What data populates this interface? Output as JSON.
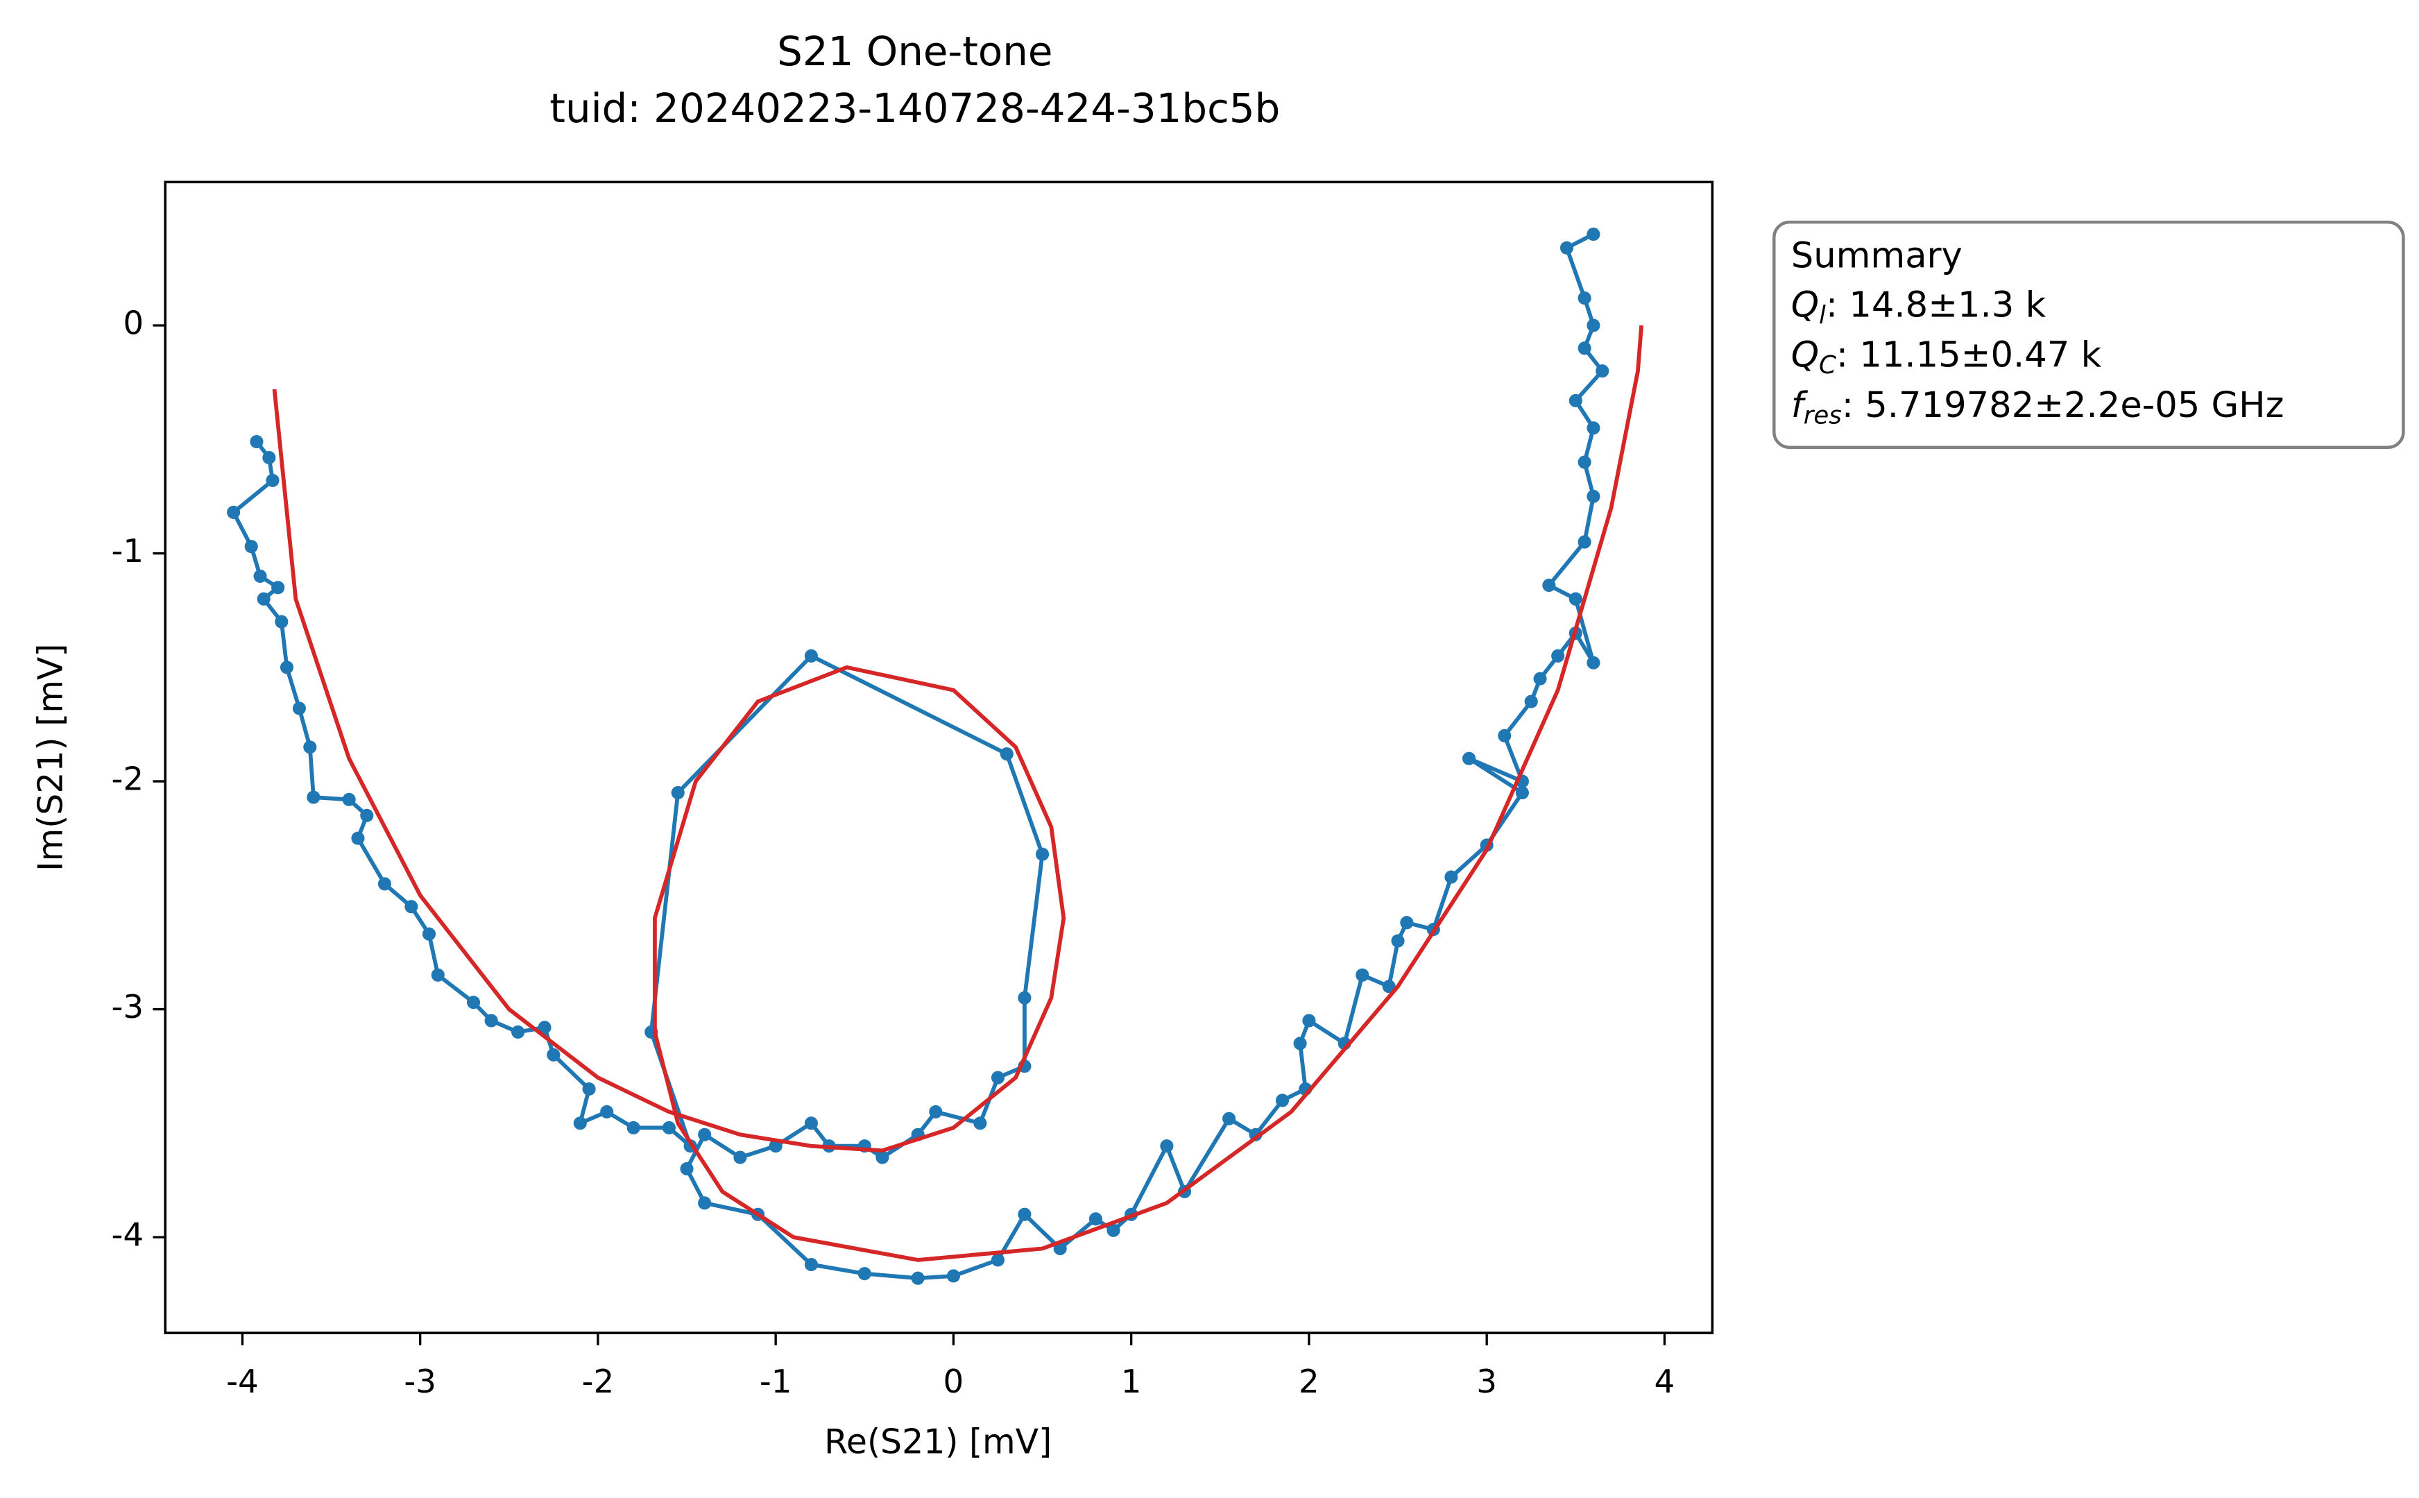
{
  "chart_data": {
    "type": "line",
    "title": "S21 One-tone",
    "subtitle": "tuid: 20240223-140728-424-31bc5b",
    "xlabel": "Re(S21) [mV]",
    "ylabel": "Im(S21) [mV]",
    "xlim": [
      -4.434,
      4.269
    ],
    "ylim": [
      -4.42,
      0.629
    ],
    "xticks": [
      -4,
      -3,
      -2,
      -1,
      0,
      1,
      2,
      3,
      4
    ],
    "yticks": [
      0,
      -1,
      -2,
      -3,
      -4
    ],
    "series": [
      {
        "color": "#1f77b4",
        "markers": true,
        "x": [
          -3.92,
          -3.85,
          -3.83,
          -4.05,
          -3.95,
          -3.9,
          -3.8,
          -3.88,
          -3.78,
          -3.75,
          -3.68,
          -3.62,
          -3.6,
          -3.4,
          -3.3,
          -3.35,
          -3.2,
          -3.05,
          -2.95,
          -2.9,
          -2.7,
          -2.6,
          -2.45,
          -2.3,
          -2.25,
          -2.05,
          -2.1,
          -1.95,
          -1.8,
          -1.6,
          -1.48,
          -1.7,
          -1.55,
          -0.8,
          0.3,
          0.5,
          0.4,
          0.4,
          0.25,
          0.15,
          -0.1,
          -0.2,
          -0.4,
          -0.5,
          -0.7,
          -0.8,
          -1.0,
          -1.2,
          -1.4,
          -1.5,
          -1.4,
          -1.1,
          -0.8,
          -0.5,
          -0.2,
          0.0,
          0.25,
          0.4,
          0.6,
          0.8,
          0.9,
          1.0,
          1.2,
          1.3,
          1.55,
          1.7,
          1.85,
          1.98,
          1.95,
          2.0,
          2.2,
          2.3,
          2.45,
          2.5,
          2.55,
          2.7,
          2.8,
          3.0,
          3.2,
          2.9,
          3.2,
          3.1,
          3.25,
          3.3,
          3.4,
          3.5,
          3.6,
          3.5,
          3.35,
          3.55,
          3.6,
          3.55,
          3.6,
          3.5,
          3.65,
          3.55,
          3.6,
          3.55,
          3.45,
          3.6
        ],
        "y": [
          -0.51,
          -0.58,
          -0.68,
          -0.82,
          -0.97,
          -1.1,
          -1.15,
          -1.2,
          -1.3,
          -1.5,
          -1.68,
          -1.85,
          -2.07,
          -2.08,
          -2.15,
          -2.25,
          -2.45,
          -2.55,
          -2.67,
          -2.85,
          -2.97,
          -3.05,
          -3.1,
          -3.08,
          -3.2,
          -3.35,
          -3.5,
          -3.45,
          -3.52,
          -3.52,
          -3.6,
          -3.1,
          -2.05,
          -1.45,
          -1.88,
          -2.32,
          -2.95,
          -3.25,
          -3.3,
          -3.5,
          -3.45,
          -3.55,
          -3.65,
          -3.6,
          -3.6,
          -3.5,
          -3.6,
          -3.65,
          -3.55,
          -3.7,
          -3.85,
          -3.9,
          -4.12,
          -4.16,
          -4.18,
          -4.17,
          -4.1,
          -3.9,
          -4.05,
          -3.92,
          -3.97,
          -3.9,
          -3.6,
          -3.8,
          -3.48,
          -3.55,
          -3.4,
          -3.35,
          -3.15,
          -3.05,
          -3.15,
          -2.85,
          -2.9,
          -2.7,
          -2.62,
          -2.65,
          -2.42,
          -2.28,
          -2.05,
          -1.9,
          -2.0,
          -1.8,
          -1.65,
          -1.55,
          -1.45,
          -1.35,
          -1.48,
          -1.2,
          -1.14,
          -0.95,
          -0.75,
          -0.6,
          -0.45,
          -0.33,
          -0.2,
          -0.1,
          0.0,
          0.12,
          0.34,
          0.4
        ]
      },
      {
        "color": "#d62728",
        "markers": false,
        "x": [
          -3.82,
          -3.7,
          -3.4,
          -3.0,
          -2.5,
          -2.0,
          -1.6,
          -1.2,
          -0.8,
          -0.4,
          0.0,
          0.35,
          0.55,
          0.62,
          0.55,
          0.35,
          0.0,
          -0.6,
          -1.1,
          -1.45,
          -1.68,
          -1.68,
          -1.55,
          -1.3,
          -0.9,
          -0.2,
          0.5,
          1.2,
          1.9,
          2.5,
          3.0,
          3.4,
          3.7,
          3.85,
          3.87
        ],
        "y": [
          -0.28,
          -1.2,
          -1.9,
          -2.5,
          -3.0,
          -3.3,
          -3.45,
          -3.55,
          -3.6,
          -3.62,
          -3.52,
          -3.3,
          -2.95,
          -2.6,
          -2.2,
          -1.85,
          -1.6,
          -1.5,
          -1.65,
          -2.0,
          -2.6,
          -3.1,
          -3.5,
          -3.8,
          -4.0,
          -4.1,
          -4.05,
          -3.85,
          -3.45,
          -2.9,
          -2.3,
          -1.6,
          -0.8,
          -0.2,
          0.0
        ]
      }
    ],
    "annotation": {
      "title": "Summary",
      "lines": [
        {
          "symbol": "Q",
          "sub": "l",
          "text": ": 14.8±1.3 k"
        },
        {
          "symbol": "Q",
          "sub": "C",
          "text": ": 11.15±0.47 k"
        },
        {
          "symbol": "f",
          "sub": "res",
          "text": ": 5.719782±2.2e-05 GHz"
        }
      ]
    }
  }
}
